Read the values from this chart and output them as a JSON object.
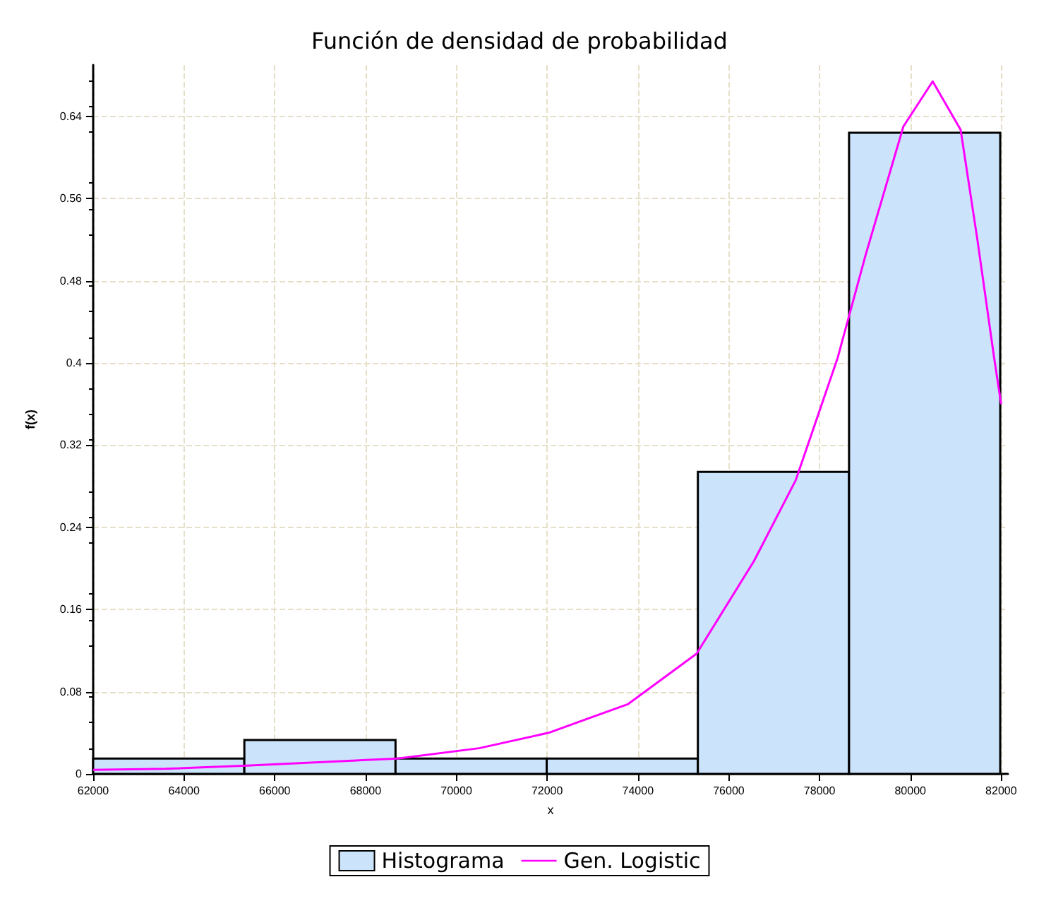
{
  "chart_data": {
    "type": "histogram",
    "title": "Función de densidad de probabilidad",
    "xlabel": "x",
    "ylabel": "f(x)",
    "xlim": [
      62000,
      82150
    ],
    "xticks": [
      62000,
      64000,
      66000,
      68000,
      70000,
      72000,
      74000,
      76000,
      78000,
      80000,
      82000
    ],
    "ylim": [
      0,
      0.69
    ],
    "yticks": [
      0,
      0.08,
      0.16,
      0.24,
      0.32,
      0.4,
      0.48,
      0.56,
      0.64
    ],
    "grid": true,
    "legend": "bottom",
    "line_style": "solid",
    "marker": "none",
    "series": [
      {
        "name": "Histograma",
        "color": "#cce4fb",
        "bins": [
          62000,
          65330,
          68660,
          71990,
          75320,
          78650,
          81980
        ],
        "values": [
          0.015,
          0.033,
          0.015,
          0.015,
          0.294,
          0.624
        ]
      },
      {
        "type": "line",
        "name": "Gen. Logistic",
        "color": "#ff00ff",
        "x": [
          62000,
          63600,
          65385,
          68708,
          70500,
          72031,
          73785,
          75292,
          76554,
          77477,
          78400,
          79015,
          79846,
          80492,
          81108,
          81477,
          81846,
          82000
        ],
        "values": [
          0.004,
          0.005,
          0.008,
          0.015,
          0.025,
          0.04,
          0.068,
          0.117,
          0.207,
          0.286,
          0.405,
          0.505,
          0.63,
          0.674,
          0.627,
          0.52,
          0.405,
          0.36
        ]
      }
    ]
  }
}
